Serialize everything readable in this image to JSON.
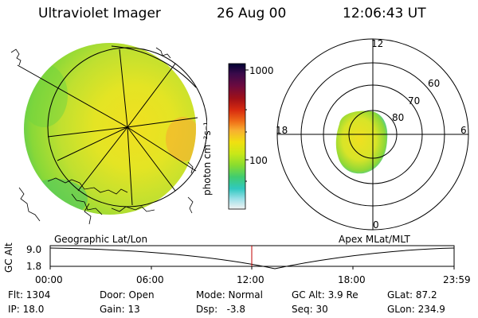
{
  "header": {
    "instrument": "Ultraviolet Imager",
    "date": "26 Aug 00",
    "time": "12:06:43 UT"
  },
  "colorbar": {
    "label": "photon cm⁻²s⁻¹",
    "ticks": [
      "1000",
      "100"
    ],
    "colors": [
      "#000033",
      "#3a0a4a",
      "#6a0a40",
      "#a01018",
      "#d82c10",
      "#f07018",
      "#f8b030",
      "#f0e010",
      "#c8e818",
      "#88dc30",
      "#40cc70",
      "#30c8c0",
      "#9ce0e8",
      "#f2f2f2"
    ]
  },
  "left_panel": {
    "caption": "Geographic Lat/Lon"
  },
  "right_panel": {
    "caption": "Apex MLat/MLT",
    "mlt_labels": {
      "top": "12",
      "left": "18",
      "right": "6",
      "bottom": "0"
    },
    "mlat_labels": [
      "60",
      "70",
      "80"
    ]
  },
  "altitude_plot": {
    "ylabel": "GC Alt",
    "yticks": [
      "9.0",
      "1.8"
    ],
    "xticks": [
      "00:00",
      "06:00",
      "12:00",
      "18:00",
      "23:59"
    ]
  },
  "status": {
    "flt": "Flt: 1304",
    "ip": "IP: 18.0",
    "door": "Door: Open",
    "gain": "Gain: 13",
    "mode": "Mode: Normal",
    "dsp": "Dsp:   -3.8",
    "gcalt": "GC Alt: 3.9 Re",
    "seq": "Seq: 30",
    "glat": "GLat: 87.2",
    "glon": "GLon: 234.9"
  }
}
